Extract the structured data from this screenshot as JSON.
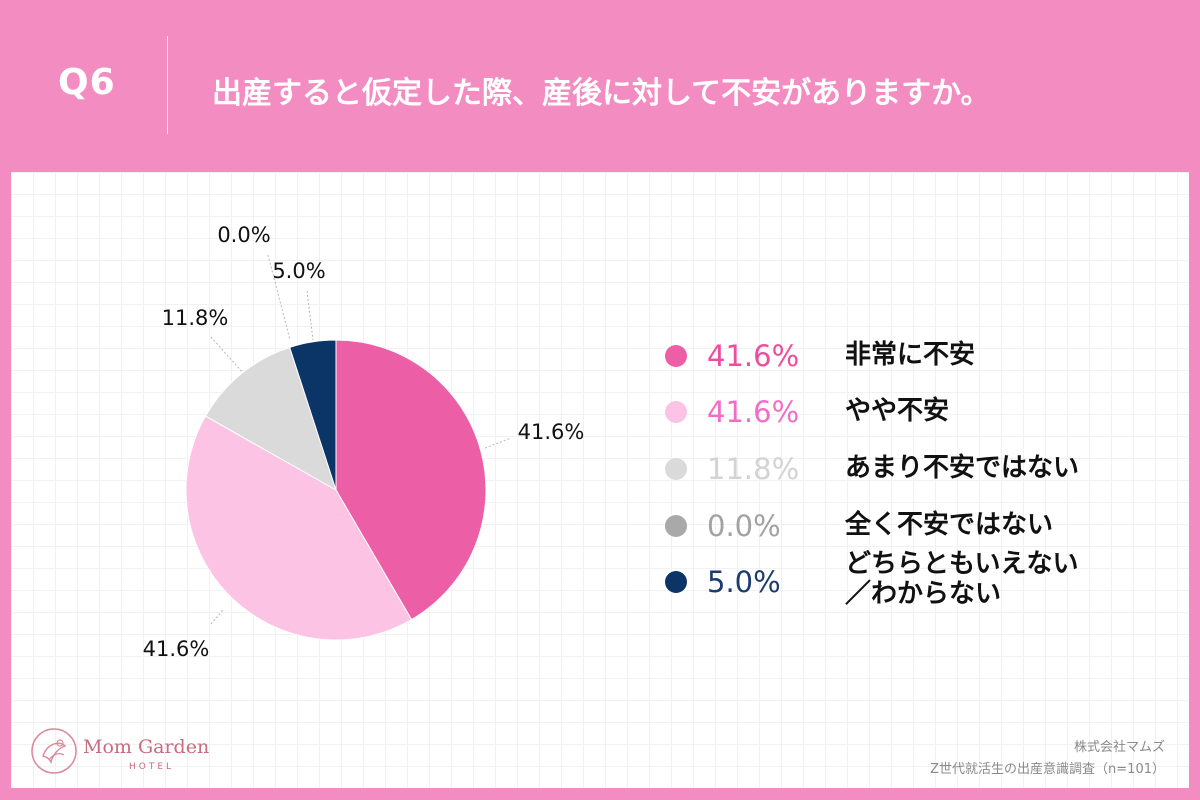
{
  "header": {
    "question_number": "Q6",
    "question_text": "出産すると仮定した際、産後に対して不安がありますか。"
  },
  "chart_data": {
    "type": "pie",
    "categories": [
      "非常に不安",
      "やや不安",
      "あまり不安ではない",
      "全く不安ではない",
      "どちらともいえない／わからない"
    ],
    "values": [
      41.6,
      41.6,
      11.8,
      0.0,
      5.0
    ],
    "value_labels": [
      "41.6%",
      "41.6%",
      "11.8%",
      "0.0%",
      "5.0%"
    ],
    "colors": [
      "#ec5ea6",
      "#fcc3e4",
      "#dadada",
      "#a9a9a9",
      "#0b3566"
    ],
    "legend_text_colors": [
      "#ec4d9c",
      "#f06ec8",
      "#d3d3d3",
      "#a2a2a2",
      "#1c3b6e"
    ],
    "start_angle_deg": 0,
    "direction": "clockwise",
    "legend_position": "right"
  },
  "legend": {
    "items": [
      {
        "pct": "41.6%",
        "label": "非常に不安"
      },
      {
        "pct": "41.6%",
        "label": "やや不安"
      },
      {
        "pct": "11.8%",
        "label": "あまり不安ではない"
      },
      {
        "pct": "0.0%",
        "label": "全く不安ではない"
      },
      {
        "pct": "5.0%",
        "label": "どちらともいえない\n／わからない"
      }
    ]
  },
  "footer": {
    "company": "株式会社マムズ",
    "survey": "Z世代就活生の出産意識調査（n=101）"
  },
  "logo": {
    "name": "Mom Garden",
    "sub": "HOTEL",
    "icon": "flower-emblem-icon"
  }
}
